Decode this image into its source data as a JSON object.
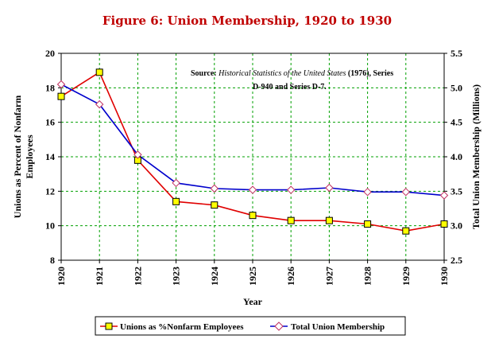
{
  "chart_data": {
    "type": "line",
    "title": "Figure 6: Union Membership, 1920 to 1930",
    "xlabel": "Year",
    "ylabel_left": "Unions as Percent of Nonfarm Employees",
    "ylabel_right": "Total Union Membership (Millions)",
    "categories": [
      "1920",
      "1921",
      "1922",
      "1923",
      "1924",
      "1925",
      "1926",
      "1927",
      "1928",
      "1929",
      "1930"
    ],
    "y_left": {
      "lim": [
        8,
        20
      ],
      "ticks": [
        "8",
        "10",
        "12",
        "14",
        "16",
        "18",
        "20"
      ]
    },
    "y_right": {
      "lim": [
        2.5,
        5.5
      ],
      "ticks": [
        "2.5",
        "3.0",
        "3.5",
        "4.0",
        "4.5",
        "5.0",
        "5.5"
      ]
    },
    "grid": true,
    "legend_position": "bottom",
    "series": [
      {
        "name": "Unions as %Nonfarm Employees",
        "axis": "left",
        "color": "#e00000",
        "marker": "square",
        "marker_fill": "#ffff00",
        "values": [
          17.5,
          18.9,
          13.8,
          11.4,
          11.2,
          10.6,
          10.3,
          10.3,
          10.1,
          9.7,
          10.1
        ]
      },
      {
        "name": "Total Union Membership",
        "axis": "right",
        "color": "#0000cc",
        "marker": "diamond",
        "marker_fill": "#ffffff",
        "values": [
          5.05,
          4.76,
          4.03,
          3.62,
          3.54,
          3.52,
          3.52,
          3.55,
          3.49,
          3.49,
          3.44
        ]
      }
    ],
    "annotation": {
      "prefix": "Source: ",
      "italic": "Historical Statistics of the United States",
      "suffix": " (1976), Series",
      "line2": "D-940 and Series D-7."
    }
  }
}
